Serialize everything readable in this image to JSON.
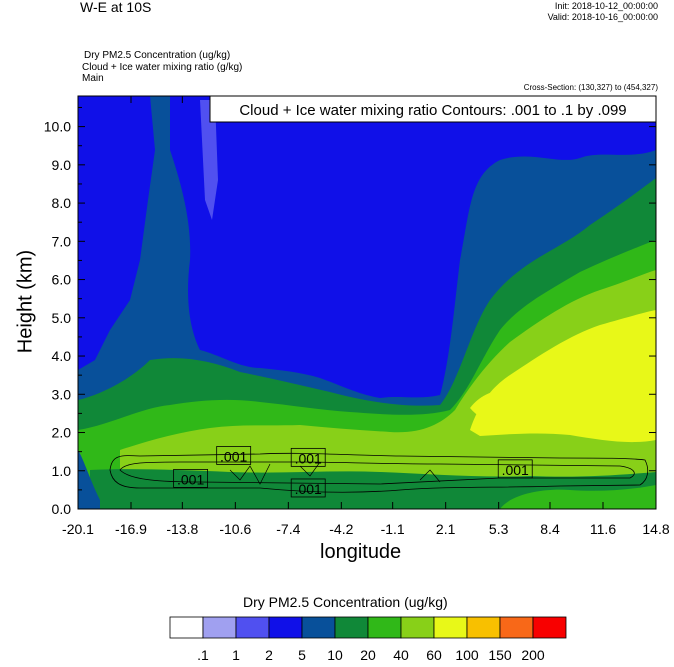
{
  "header": {
    "title": "W-E at 10S",
    "init": "Init: 2018-10-12_00:00:00",
    "valid": "Valid: 2018-10-16_00:00:00",
    "fields": [
      "Dry PM2.5 Concentration   (ug/kg)",
      "Cloud + Ice water mixing ratio   (g/kg)",
      "Main"
    ],
    "cross_section": "Cross-Section: (130,327) to (454,327)"
  },
  "chart_data": {
    "type": "heatmap",
    "title": "W-E at 10S",
    "xlabel": "longitude",
    "ylabel": "Height (km)",
    "x_ticks": [
      "-20.1",
      "-16.9",
      "-13.8",
      "-10.6",
      "-7.4",
      "-4.2",
      "-1.1",
      "2.1",
      "5.3",
      "8.4",
      "11.6",
      "14.8"
    ],
    "x_range": [
      -20.1,
      14.8
    ],
    "y_ticks": [
      "0.0",
      "1.0",
      "2.0",
      "3.0",
      "4.0",
      "5.0",
      "6.0",
      "7.0",
      "8.0",
      "9.0",
      "10.0"
    ],
    "y_range": [
      0,
      10.8
    ],
    "grid": false,
    "contour_title": "Cloud + Ice water mixing ratio Contours: .001 to .1 by .099",
    "contour_labels": [
      {
        "text": ".001",
        "x": -13.3,
        "y": 0.8
      },
      {
        "text": ".001",
        "x": -10.7,
        "y": 1.4
      },
      {
        "text": ".001",
        "x": -6.2,
        "y": 1.35
      },
      {
        "text": ".001",
        "x": -6.2,
        "y": 0.55
      },
      {
        "text": ".001",
        "x": 6.3,
        "y": 1.05
      }
    ],
    "legend": {
      "title": "Dry PM2.5 Concentration  (ug/kg)",
      "boundaries": [
        ".1",
        "1",
        "2",
        "5",
        "10",
        "20",
        "40",
        "60",
        "100",
        "150",
        "200"
      ],
      "colors": [
        "#ffffff",
        "#a0a0f0",
        "#5050f0",
        "#1010e8",
        "#08509a",
        "#108838",
        "#30b818",
        "#88d018",
        "#e8f818",
        "#f8c000",
        "#f86818",
        "#f80000"
      ]
    }
  }
}
